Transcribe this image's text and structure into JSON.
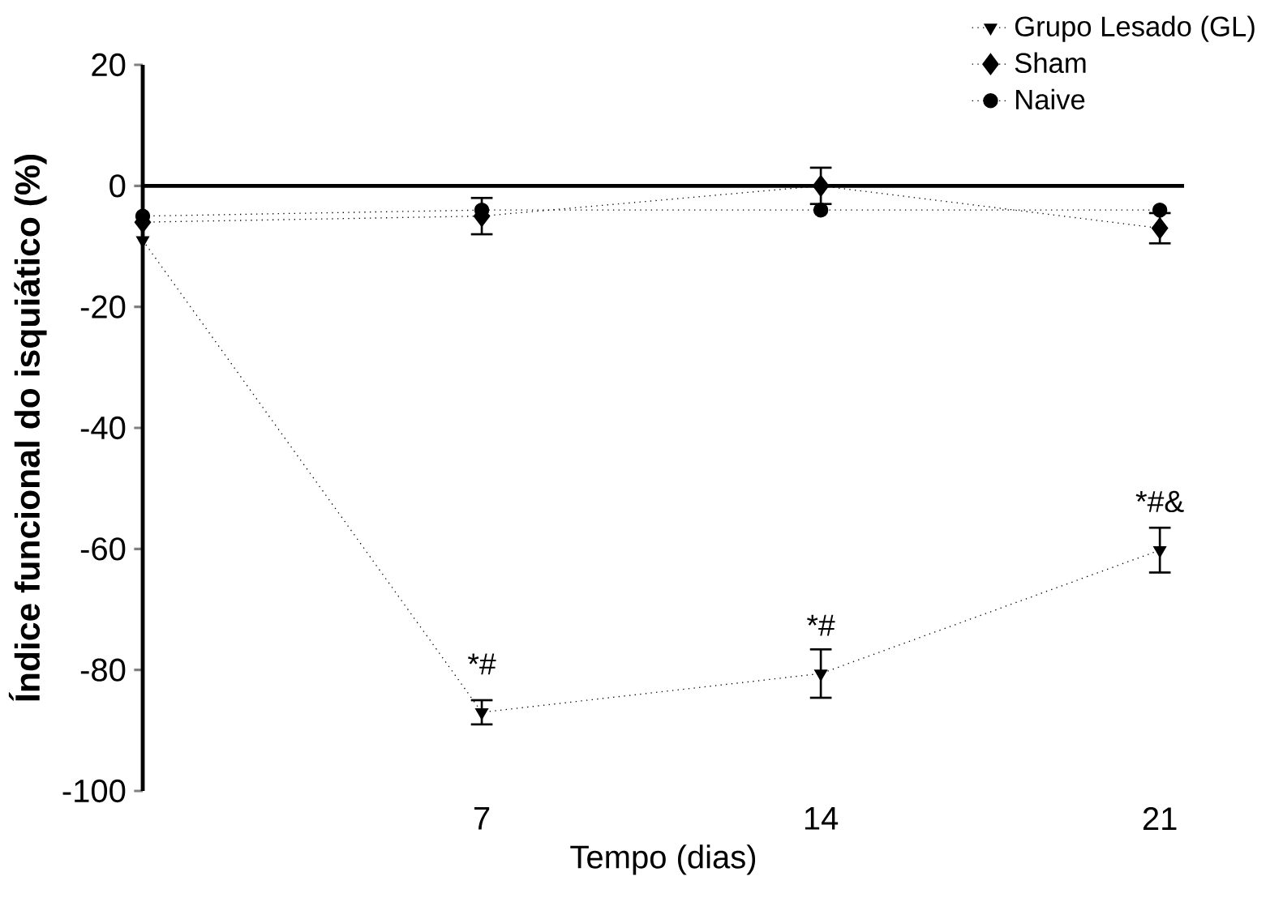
{
  "chart_data": {
    "type": "line",
    "xlabel": "Tempo (dias)",
    "ylabel": "Índice funcional do isquiático (%)",
    "x": [
      0,
      7,
      14,
      21
    ],
    "xlim": [
      0,
      21.5
    ],
    "xticks": [
      7,
      14,
      21
    ],
    "ylim": [
      -100,
      20
    ],
    "yticks": [
      20,
      0,
      -20,
      -40,
      -60,
      -80,
      -100
    ],
    "series": [
      {
        "name": "Grupo Lesado (GL)",
        "color": "#000000",
        "marker": "triangle",
        "line_style": "dotted",
        "values": [
          -9,
          -87,
          -80.6,
          -60.2
        ],
        "errors": [
          null,
          2,
          4,
          3.7
        ]
      },
      {
        "name": "Sham",
        "color": "#000000",
        "marker": "diamond",
        "line_style": "dotted",
        "values": [
          -6,
          -5,
          0,
          -7
        ],
        "errors": [
          null,
          3,
          3,
          2.5
        ]
      },
      {
        "name": "Naive",
        "color": "#000000",
        "marker": "circle",
        "line_style": "dotted",
        "values": [
          -5,
          -4,
          -4,
          -4
        ]
      }
    ],
    "ref_lines": [
      {
        "axis": "y",
        "value": 0
      }
    ],
    "annotations": [
      {
        "text": "*#",
        "x": 7,
        "y": -87
      },
      {
        "text": "*#",
        "x": 14,
        "y": -80.6
      },
      {
        "text": "*#&",
        "x": 21,
        "y": -60.2
      }
    ],
    "legend": "top right",
    "grid": false
  }
}
